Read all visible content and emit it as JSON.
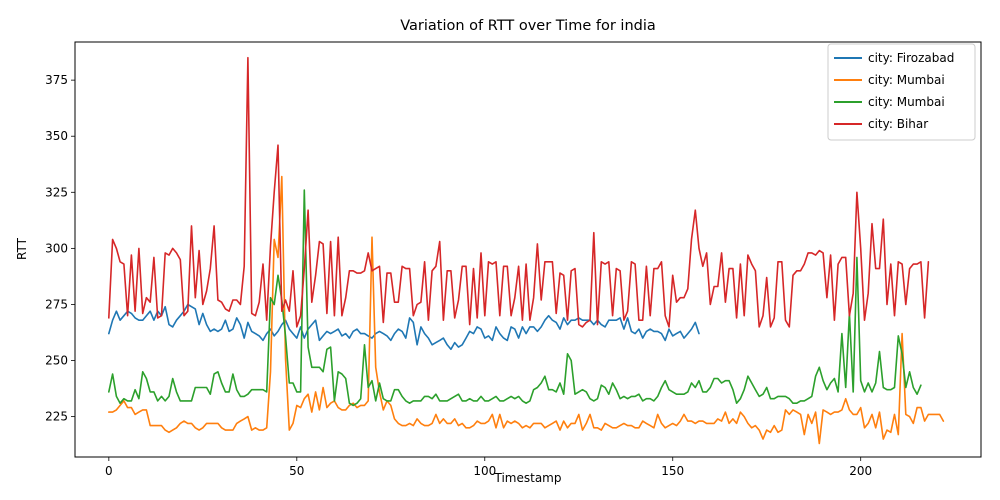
{
  "chart_data": {
    "type": "line",
    "title": "Variation of RTT over Time for india",
    "xlabel": "Timestamp",
    "ylabel": "RTT",
    "xlim": [
      -9,
      232
    ],
    "ylim": [
      207,
      392
    ],
    "xticks": [
      0,
      50,
      100,
      150,
      200
    ],
    "yticks": [
      225,
      250,
      275,
      300,
      325,
      350,
      375
    ],
    "grid": false,
    "legend_position": "top-right",
    "series": [
      {
        "name": "city: Firozabad",
        "color": "#1f77b4",
        "x_start": 0,
        "values": [
          262,
          268,
          272,
          268,
          270,
          272,
          271,
          269,
          268,
          268,
          270,
          272,
          268,
          272,
          270,
          274,
          266,
          265,
          268,
          270,
          272,
          275,
          274,
          273,
          266,
          271,
          266,
          263,
          264,
          263,
          264,
          268,
          263,
          264,
          269,
          266,
          260,
          267,
          263,
          262,
          261,
          259,
          262,
          264,
          261,
          263,
          266,
          268,
          264,
          262,
          260,
          265,
          260,
          264,
          266,
          268,
          259,
          261,
          263,
          262,
          263,
          264,
          261,
          262,
          260,
          263,
          264,
          262,
          262,
          261,
          260,
          262,
          263,
          262,
          261,
          259,
          262,
          264,
          263,
          260,
          269,
          267,
          257,
          265,
          262,
          260,
          257,
          258,
          259,
          260,
          257,
          255,
          258,
          256,
          257,
          260,
          263,
          262,
          265,
          264,
          260,
          261,
          259,
          265,
          262,
          260,
          259,
          265,
          264,
          260,
          265,
          262,
          265,
          265,
          263,
          265,
          268,
          270,
          268,
          267,
          264,
          269,
          266,
          268,
          268,
          269,
          268,
          268,
          268,
          266,
          268,
          266,
          265,
          268,
          268,
          268,
          269,
          264,
          269,
          263,
          262,
          264,
          260,
          263,
          264,
          263,
          263,
          262,
          259,
          264,
          261,
          262,
          263,
          260,
          262,
          264,
          267,
          262
        ]
      },
      {
        "name": "city: Mumbai",
        "color": "#ff7f0e",
        "x_start": 0,
        "values": [
          227,
          227,
          228,
          230,
          232,
          229,
          229,
          226,
          227,
          228,
          228,
          221,
          221,
          221,
          221,
          219,
          218,
          219,
          220,
          222,
          223,
          222,
          222,
          220,
          219,
          220,
          222,
          222,
          222,
          222,
          220,
          219,
          219,
          219,
          222,
          223,
          224,
          225,
          219,
          220,
          219,
          219,
          220,
          245,
          304,
          296,
          332,
          251,
          219,
          222,
          230,
          229,
          233,
          235,
          227,
          236,
          228,
          238,
          229,
          231,
          232,
          229,
          228,
          228,
          230,
          231,
          229,
          230,
          230,
          232,
          305,
          247,
          236,
          228,
          232,
          230,
          224,
          222,
          221,
          221,
          222,
          221,
          224,
          222,
          221,
          221,
          222,
          226,
          222,
          224,
          222,
          222,
          224,
          221,
          222,
          220,
          220,
          221,
          223,
          222,
          222,
          223,
          226,
          220,
          226,
          220,
          223,
          222,
          223,
          222,
          220,
          221,
          220,
          222,
          222,
          222,
          220,
          221,
          222,
          223,
          219,
          223,
          220,
          222,
          222,
          226,
          219,
          222,
          226,
          220,
          220,
          219,
          222,
          221,
          220,
          220,
          221,
          222,
          221,
          221,
          220,
          220,
          223,
          222,
          221,
          220,
          226,
          222,
          220,
          221,
          222,
          221,
          223,
          226,
          223,
          223,
          222,
          223,
          223,
          222,
          222,
          222,
          224,
          223,
          227,
          222,
          224,
          222,
          227,
          225,
          222,
          220,
          221,
          219,
          215,
          219,
          218,
          221,
          218,
          219,
          228,
          226,
          228,
          227,
          226,
          217,
          226,
          222,
          227,
          213,
          228,
          227,
          226,
          227,
          227,
          228,
          233,
          228,
          226,
          226,
          229,
          220,
          222,
          226,
          220,
          227,
          215,
          219,
          218,
          226,
          217,
          262,
          226,
          225,
          222,
          229,
          229,
          223,
          226,
          226,
          226,
          226,
          223
        ]
      },
      {
        "name": "city: Mumbai",
        "color": "#2ca02c",
        "x_start": 0,
        "values": [
          236,
          244,
          234,
          231,
          233,
          232,
          232,
          237,
          233,
          245,
          242,
          236,
          236,
          232,
          234,
          232,
          234,
          242,
          236,
          232,
          232,
          232,
          232,
          238,
          238,
          238,
          238,
          235,
          244,
          245,
          240,
          236,
          236,
          244,
          237,
          234,
          234,
          235,
          237,
          237,
          237,
          237,
          236,
          278,
          275,
          288,
          277,
          261,
          240,
          240,
          236,
          236,
          326,
          256,
          247,
          247,
          247,
          245,
          255,
          256,
          232,
          245,
          244,
          242,
          231,
          230,
          231,
          233,
          257,
          238,
          241,
          232,
          240,
          233,
          232,
          232,
          237,
          237,
          234,
          232,
          231,
          232,
          232,
          232,
          234,
          234,
          233,
          235,
          232,
          232,
          232,
          233,
          234,
          235,
          232,
          232,
          233,
          232,
          232,
          234,
          232,
          232,
          233,
          234,
          232,
          232,
          233,
          234,
          233,
          234,
          232,
          231,
          232,
          237,
          238,
          240,
          243,
          237,
          237,
          236,
          240,
          235,
          253,
          250,
          235,
          236,
          237,
          236,
          233,
          232,
          233,
          239,
          238,
          235,
          240,
          237,
          233,
          234,
          233,
          234,
          234,
          235,
          232,
          233,
          233,
          232,
          234,
          238,
          241,
          237,
          236,
          235,
          235,
          235,
          236,
          240,
          238,
          241,
          236,
          236,
          238,
          242,
          242,
          240,
          241,
          241,
          237,
          231,
          233,
          237,
          243,
          240,
          237,
          234,
          235,
          238,
          233,
          233,
          234,
          234,
          234,
          233,
          231,
          231,
          232,
          232,
          233,
          234,
          243,
          247,
          241,
          237,
          240,
          242,
          236,
          262,
          238,
          271,
          236,
          296,
          241,
          236,
          240,
          236,
          240,
          254,
          238,
          237,
          237,
          238,
          261,
          253,
          238,
          245,
          238,
          235,
          239
        ]
      },
      {
        "name": "city: Bihar",
        "color": "#d62728",
        "x_start": 0,
        "values": [
          269,
          304,
          300,
          294,
          293,
          270,
          297,
          272,
          300,
          271,
          278,
          276,
          296,
          269,
          270,
          298,
          297,
          300,
          298,
          295,
          270,
          272,
          310,
          278,
          299,
          275,
          281,
          291,
          310,
          277,
          276,
          273,
          272,
          277,
          277,
          275,
          292,
          385,
          271,
          270,
          276,
          293,
          268,
          301,
          325,
          346,
          272,
          277,
          272,
          290,
          265,
          270,
          291,
          317,
          276,
          288,
          303,
          302,
          271,
          303,
          270,
          305,
          270,
          278,
          290,
          290,
          289,
          289,
          290,
          298,
          290,
          291,
          292,
          267,
          289,
          289,
          276,
          276,
          292,
          291,
          291,
          270,
          275,
          276,
          294,
          268,
          290,
          292,
          303,
          268,
          290,
          290,
          269,
          277,
          292,
          292,
          266,
          291,
          269,
          298,
          270,
          294,
          293,
          294,
          270,
          292,
          292,
          270,
          278,
          292,
          268,
          293,
          268,
          278,
          302,
          277,
          294,
          294,
          294,
          271,
          289,
          288,
          268,
          290,
          291,
          266,
          265,
          267,
          268,
          307,
          266,
          294,
          293,
          294,
          270,
          291,
          290,
          268,
          272,
          294,
          293,
          268,
          268,
          292,
          270,
          291,
          291,
          294,
          270,
          265,
          288,
          276,
          278,
          278,
          282,
          304,
          317,
          300,
          292,
          298,
          275,
          283,
          283,
          298,
          276,
          291,
          291,
          269,
          293,
          270,
          297,
          293,
          290,
          265,
          270,
          287,
          265,
          269,
          294,
          294,
          268,
          265,
          288,
          290,
          290,
          293,
          298,
          298,
          297,
          299,
          298,
          278,
          297,
          268,
          293,
          296,
          296,
          270,
          280,
          325,
          300,
          268,
          280,
          311,
          291,
          291,
          313,
          275,
          293,
          270,
          294,
          293,
          275,
          291,
          293,
          293,
          294,
          269,
          294
        ]
      }
    ]
  }
}
